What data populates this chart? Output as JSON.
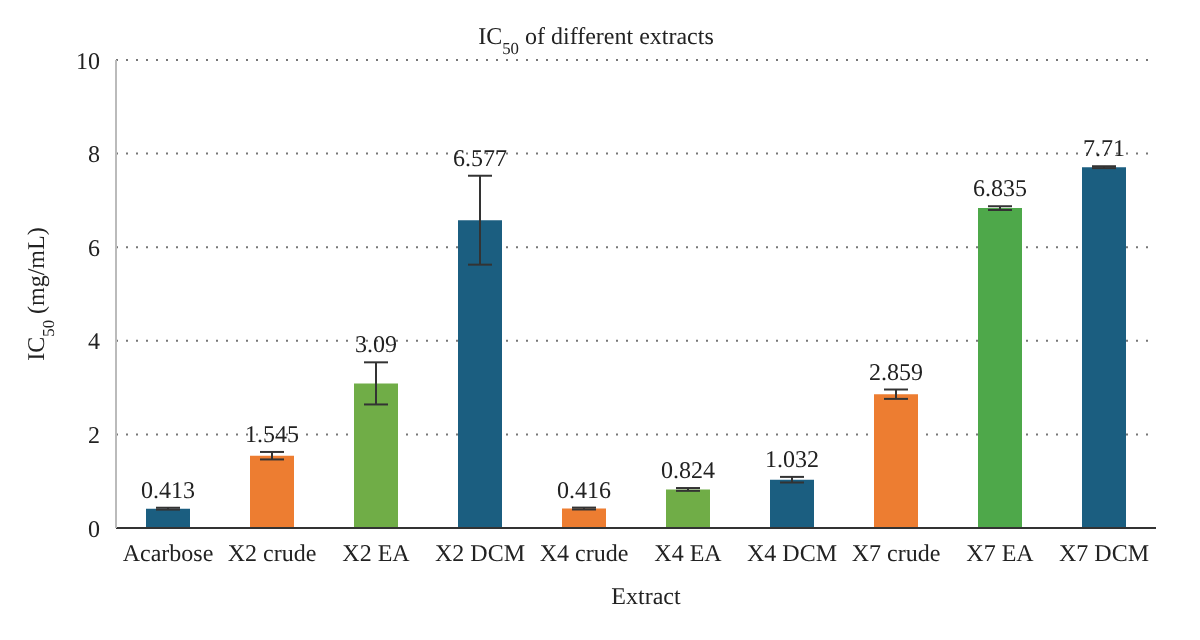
{
  "chart_data": {
    "type": "bar",
    "title": "IC$_{50}$ of different extracts",
    "xlabel": "Extract",
    "ylabel": "IC$_{50}$ (mg/mL)",
    "categories": [
      "Acarbose",
      "X2 crude",
      "X2 EA",
      "X2 DCM",
      "X4 crude",
      "X4 EA",
      "X4 DCM",
      "X7 crude",
      "X7 EA",
      "X7 DCM"
    ],
    "values": [
      0.413,
      1.545,
      3.09,
      6.577,
      0.416,
      0.824,
      1.032,
      2.859,
      6.835,
      7.71
    ],
    "colors": [
      "#1b5e80",
      "#ed7d31",
      "#70ad47",
      "#1b5e80",
      "#ed7d31",
      "#70ad47",
      "#1b5e80",
      "#ed7d31",
      "#4ea84a",
      "#1b5e80"
    ],
    "errors": [
      0.02,
      0.08,
      0.45,
      0.95,
      0.02,
      0.03,
      0.06,
      0.1,
      0.04,
      0.02
    ],
    "data_labels": true,
    "ylim": [
      0,
      10
    ],
    "yticks": [
      0,
      2,
      4,
      6,
      8,
      10
    ],
    "grid": "y"
  }
}
